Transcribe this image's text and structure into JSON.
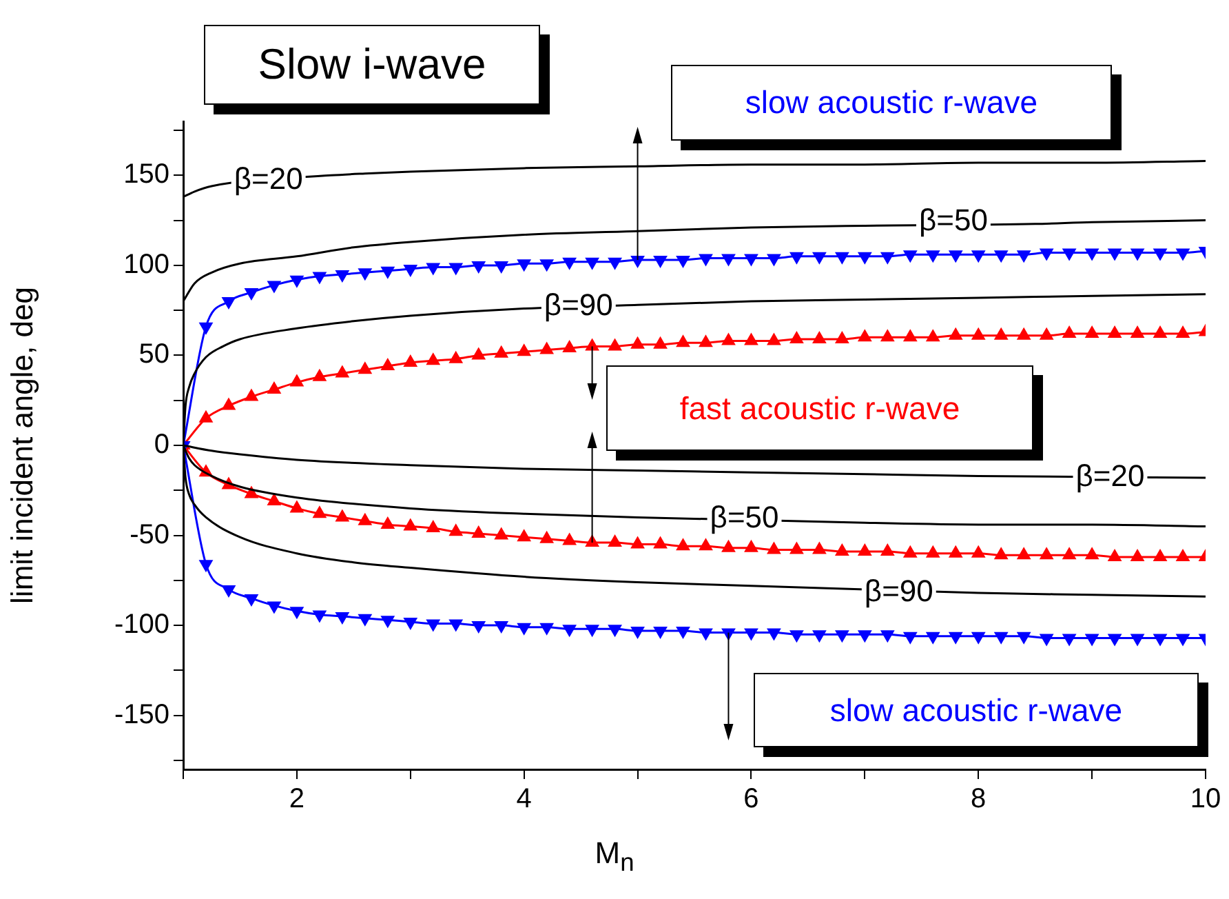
{
  "chart_data": {
    "type": "line",
    "title": "Slow i-wave",
    "xlabel": "M$_{n}$",
    "ylabel": "limit incident angle, deg",
    "xlim": [
      1,
      10
    ],
    "xticks": [
      {
        "value": 1,
        "label": null
      },
      2,
      {
        "value": 3,
        "label": null
      },
      4,
      {
        "value": 5,
        "label": null
      },
      6,
      {
        "value": 7,
        "label": null
      },
      8,
      {
        "value": 9,
        "label": null
      },
      10
    ],
    "ylim": [
      -180,
      180
    ],
    "yticks": [
      {
        "value": -175,
        "label": null
      },
      -150,
      {
        "value": -125,
        "label": null
      },
      -100,
      {
        "value": -75,
        "label": null
      },
      -50,
      {
        "value": -25,
        "label": null
      },
      0,
      {
        "value": 25,
        "label": null
      },
      50,
      {
        "value": 75,
        "label": null
      },
      100,
      {
        "value": 125,
        "label": null
      },
      150,
      {
        "value": 175,
        "label": null
      }
    ],
    "grid": false,
    "legend": false,
    "series": [
      {
        "color": "#000000",
        "x": [
          1,
          1.1,
          1.25,
          2.3,
          2.6,
          3,
          4,
          5,
          6,
          7,
          8,
          9,
          10
        ],
        "values": [
          138,
          141,
          144,
          150,
          151,
          152,
          154,
          155,
          156,
          156,
          157,
          157,
          158
        ]
      },
      {
        "color": "#000000",
        "x": [
          1,
          1.1,
          1.25,
          1.5,
          2,
          2.5,
          3,
          4,
          5,
          6,
          7,
          8.5,
          9,
          10
        ],
        "values": [
          80,
          90,
          96,
          101,
          105,
          110,
          113,
          117,
          119,
          121,
          122,
          123,
          124,
          125
        ]
      },
      {
        "color": "#000000",
        "x": [
          1,
          1.02,
          1.05,
          1.1,
          1.2,
          1.35,
          1.5,
          2,
          2.5,
          3,
          4,
          5,
          6,
          7,
          8,
          9,
          10
        ],
        "values": [
          0,
          22,
          32,
          40,
          49,
          55,
          59,
          65,
          69,
          72,
          76,
          78,
          80,
          81,
          82,
          83,
          84
        ]
      },
      {
        "color": "#000000",
        "x": [
          1,
          1.25,
          1.5,
          2,
          3,
          4,
          5,
          6,
          7,
          8,
          10
        ],
        "values": [
          0,
          -3,
          -5,
          -8,
          -11,
          -13,
          -14,
          -15,
          -16,
          -17,
          -18
        ]
      },
      {
        "color": "#000000",
        "x": [
          1,
          1.05,
          1.1,
          1.25,
          1.5,
          2,
          3,
          4,
          5,
          7,
          8,
          9,
          10
        ],
        "values": [
          0,
          -7,
          -11,
          -17,
          -23,
          -29,
          -35,
          -38,
          -40,
          -43,
          -44,
          -44,
          -45
        ]
      },
      {
        "color": "#000000",
        "x": [
          1,
          1.02,
          1.05,
          1.1,
          1.2,
          1.5,
          2,
          2.5,
          3,
          4,
          5,
          6,
          8,
          9,
          10
        ],
        "values": [
          0,
          -18,
          -27,
          -33,
          -40,
          -51,
          -60,
          -65,
          -68,
          -73,
          -76,
          -78,
          -82,
          -83,
          -84
        ]
      },
      {
        "name": "slow acoustic r-wave",
        "color": "#0000ff",
        "marker": "triangle",
        "x": [
          1,
          1.2,
          1.4,
          1.6,
          1.8,
          2,
          2.2,
          2.4,
          2.6,
          2.8,
          3,
          3.2,
          3.4,
          3.6,
          3.8,
          4,
          4.2,
          4.4,
          4.6,
          4.8,
          5,
          5.2,
          5.4,
          5.6,
          5.8,
          6,
          6.2,
          6.4,
          6.6,
          6.8,
          7,
          7.2,
          7.4,
          7.6,
          7.8,
          8,
          8.2,
          8.4,
          8.6,
          8.8,
          9,
          9.2,
          9.4,
          9.6,
          9.8,
          10
        ],
        "values": [
          0,
          66,
          80,
          85,
          89,
          92,
          94,
          95,
          96,
          97,
          98,
          99,
          99,
          100,
          100,
          101,
          101,
          102,
          102,
          102,
          103,
          103,
          103,
          104,
          104,
          104,
          104,
          105,
          105,
          105,
          105,
          105,
          106,
          106,
          106,
          106,
          106,
          106,
          107,
          107,
          107,
          107,
          107,
          107,
          107,
          108
        ]
      },
      {
        "name": "fast acoustic r-wave",
        "color": "#ff0000",
        "marker": "triangle",
        "x": [
          1,
          1.2,
          1.4,
          1.6,
          1.8,
          2,
          2.2,
          2.4,
          2.6,
          2.8,
          3,
          3.2,
          3.4,
          3.6,
          3.8,
          4,
          4.2,
          4.4,
          4.6,
          4.8,
          5,
          5.2,
          5.4,
          5.6,
          5.8,
          6,
          6.2,
          6.4,
          6.6,
          6.8,
          7,
          7.2,
          7.4,
          7.6,
          7.8,
          8,
          8.2,
          8.4,
          8.6,
          8.8,
          9,
          9.2,
          9.4,
          9.6,
          9.8,
          10
        ],
        "values": [
          0,
          15,
          22,
          27,
          31,
          35,
          38,
          40,
          42,
          44,
          46,
          47,
          48,
          50,
          51,
          52,
          53,
          54,
          55,
          55,
          56,
          56,
          57,
          57,
          58,
          58,
          58,
          59,
          59,
          59,
          60,
          60,
          60,
          60,
          61,
          61,
          61,
          61,
          61,
          62,
          62,
          62,
          62,
          62,
          62,
          63
        ]
      },
      {
        "color": "#ff0000",
        "marker": "triangle",
        "x": [
          1,
          1.2,
          1.4,
          1.6,
          1.8,
          2,
          2.2,
          2.4,
          2.6,
          2.8,
          3,
          3.2,
          3.4,
          3.6,
          3.8,
          4,
          4.2,
          4.4,
          4.6,
          4.8,
          5,
          5.2,
          5.4,
          5.6,
          5.8,
          6,
          6.2,
          6.4,
          6.6,
          6.8,
          7,
          7.2,
          7.4,
          7.6,
          7.8,
          8,
          8.2,
          8.4,
          8.6,
          8.8,
          9,
          9.2,
          9.4,
          9.6,
          9.8,
          10
        ],
        "values": [
          0,
          -15,
          -22,
          -27,
          -31,
          -35,
          -38,
          -40,
          -42,
          -44,
          -45,
          -46,
          -48,
          -49,
          -50,
          -51,
          -52,
          -53,
          -54,
          -54,
          -55,
          -55,
          -56,
          -56,
          -57,
          -57,
          -58,
          -58,
          -58,
          -59,
          -59,
          -59,
          -60,
          -60,
          -60,
          -60,
          -61,
          -61,
          -61,
          -61,
          -61,
          -62,
          -62,
          -62,
          -62,
          -62
        ]
      },
      {
        "name": "slow acoustic r-wave",
        "color": "#0000ff",
        "marker": "triangle",
        "x": [
          1,
          1.2,
          1.4,
          1.6,
          1.8,
          2,
          2.2,
          2.4,
          2.6,
          2.8,
          3,
          3.2,
          3.4,
          3.6,
          3.8,
          4,
          4.2,
          4.4,
          4.6,
          4.8,
          5,
          5.2,
          5.4,
          5.6,
          5.8,
          6,
          6.2,
          6.4,
          6.6,
          6.8,
          7,
          7.2,
          7.4,
          7.6,
          7.8,
          8,
          8.2,
          8.4,
          8.6,
          8.8,
          9,
          9.2,
          9.4,
          9.6,
          9.8,
          10
        ],
        "values": [
          0,
          -66,
          -80,
          -85,
          -89,
          -92,
          -94,
          -95,
          -96,
          -97,
          -98,
          -99,
          -99,
          -100,
          -100,
          -101,
          -101,
          -102,
          -102,
          -102,
          -103,
          -103,
          -103,
          -104,
          -104,
          -104,
          -104,
          -105,
          -105,
          -105,
          -105,
          -105,
          -106,
          -106,
          -106,
          -106,
          -106,
          -106,
          -107,
          -107,
          -107,
          -107,
          -107,
          -107,
          -107,
          -107
        ]
      }
    ],
    "annotations": [
      {
        "text": "β=20",
        "x": 1.75,
        "y": 147
      },
      {
        "text": "β=50",
        "x": 7.78,
        "y": 124
      },
      {
        "text": "β=90",
        "x": 4.48,
        "y": 77
      },
      {
        "text": "β=20",
        "x": 9.16,
        "y": -18
      },
      {
        "text": "β=50",
        "x": 5.94,
        "y": -41
      },
      {
        "text": "β=90",
        "x": 7.3,
        "y": -82
      }
    ]
  }
}
